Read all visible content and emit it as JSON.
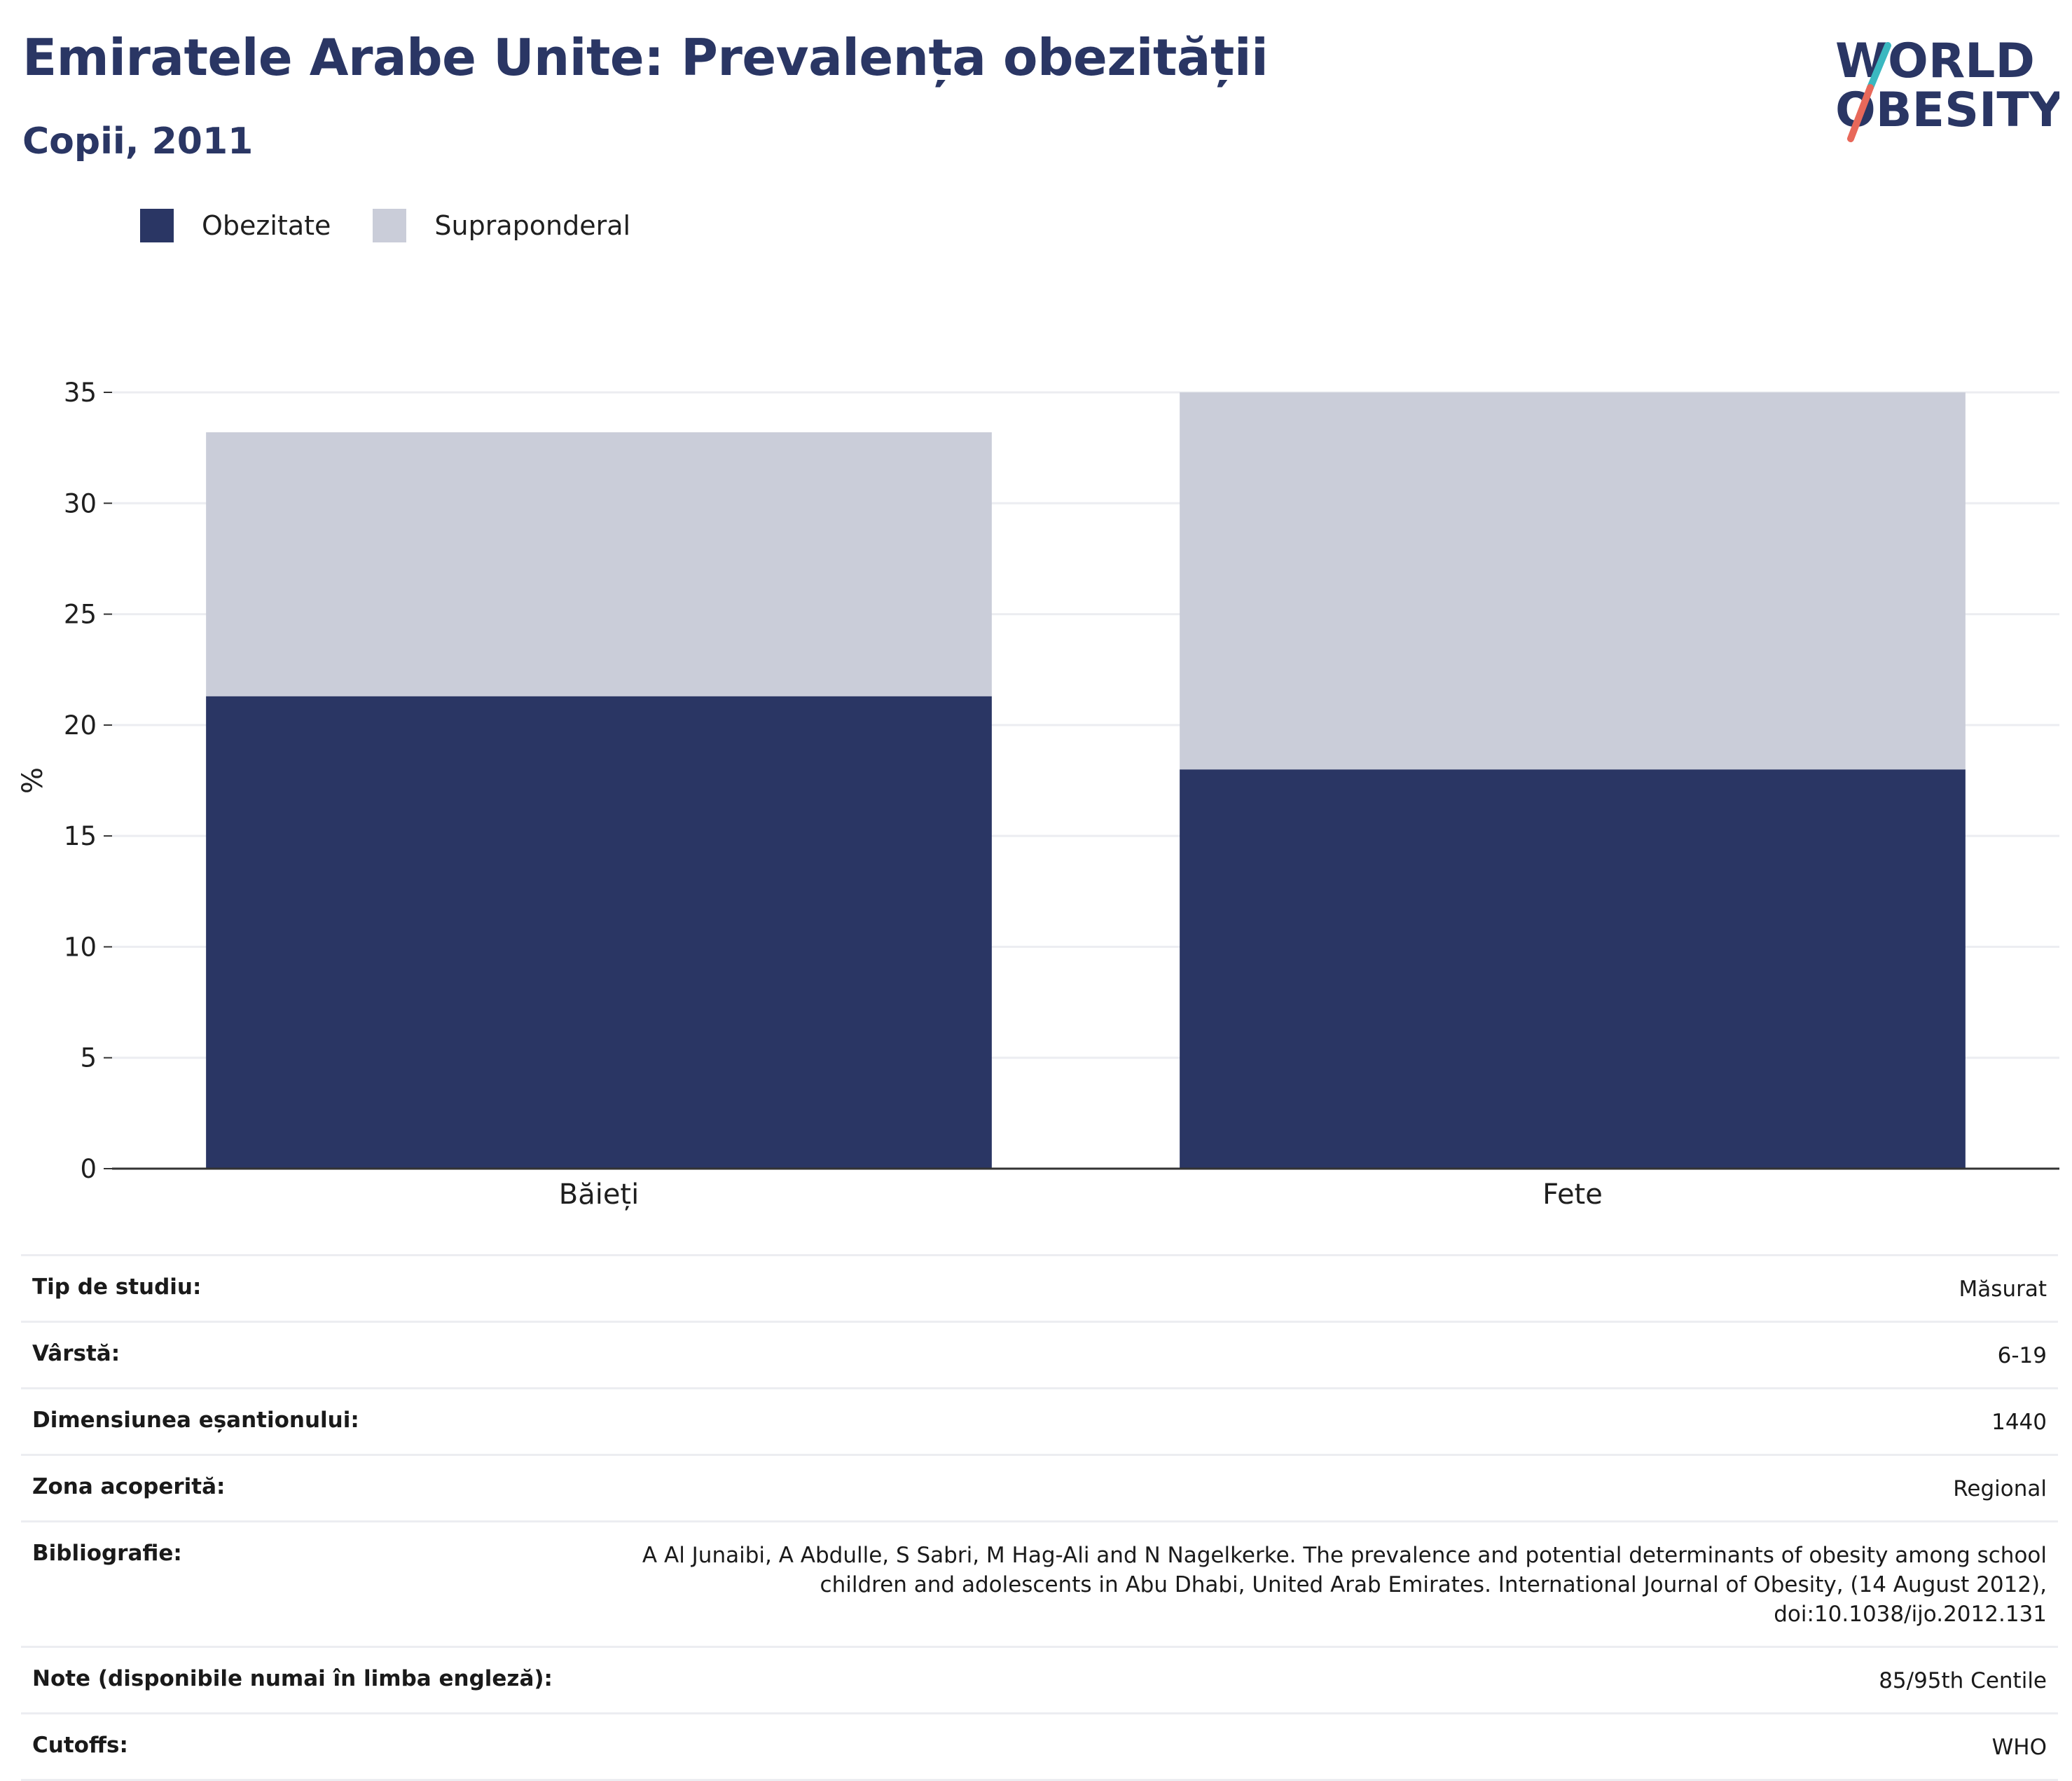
{
  "header": {
    "title": "Emiratele Arabe Unite: Prevalența obezității",
    "subtitle": "Copii, 2011"
  },
  "logo": {
    "line1": "WORLD",
    "line2": "OBESITY"
  },
  "colors": {
    "obesity": "#2a3664",
    "overweight": "#cacdd9",
    "title": "#2a3664",
    "gridline": "#ecedf1",
    "logo_teal": "#3ab8c0",
    "logo_coral": "#e8685a"
  },
  "legend": [
    {
      "label": "Obezitate",
      "color": "#2a3664"
    },
    {
      "label": "Supraponderal",
      "color": "#cacdd9"
    }
  ],
  "chart_data": {
    "type": "bar",
    "stacked": true,
    "categories": [
      "Băieți",
      "Fete"
    ],
    "series": [
      {
        "name": "Obezitate",
        "values": [
          21.3,
          18.0
        ]
      },
      {
        "name": "Supraponderal",
        "values": [
          11.9,
          17.0
        ]
      }
    ],
    "ylabel": "%",
    "ylim": [
      0,
      35
    ],
    "yticks": [
      0,
      5,
      10,
      15,
      20,
      25,
      30,
      35
    ],
    "grid": true,
    "legend_position": "top-left"
  },
  "details": [
    {
      "key": "Tip de studiu:",
      "value": "Măsurat"
    },
    {
      "key": "Vârstă:",
      "value": "6-19"
    },
    {
      "key": "Dimensiunea eșantionului:",
      "value": "1440"
    },
    {
      "key": "Zona acoperită:",
      "value": "Regional"
    },
    {
      "key": "Bibliografie:",
      "value": "A Al Junaibi, A Abdulle, S Sabri, M Hag-Ali and N Nagelkerke. The prevalence and potential determinants of obesity among school children and adolescents in Abu Dhabi, United Arab Emirates. International Journal of Obesity, (14 August 2012), doi:10.1038/ijo.2012.131"
    },
    {
      "key": "Note (disponibile numai în limba engleză):",
      "value": "85/95th Centile"
    },
    {
      "key": "Cutoffs:",
      "value": "WHO"
    }
  ]
}
